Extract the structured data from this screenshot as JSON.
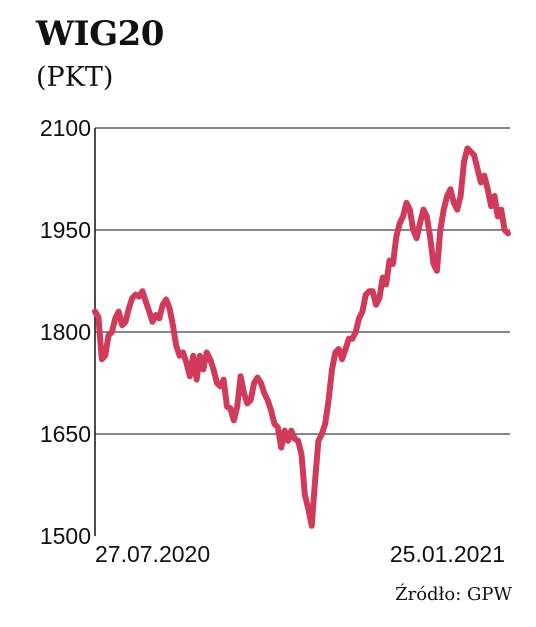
{
  "header": {
    "title": "WIG20",
    "unit": "(PKT)"
  },
  "footer": {
    "source": "Źródło: GPW"
  },
  "chart_data": {
    "type": "line",
    "title": "WIG20",
    "ylabel": "(PKT)",
    "xlabel": "",
    "ylim": [
      1500,
      2100
    ],
    "yticks": [
      "1500",
      "1650",
      "1800",
      "1950",
      "2100"
    ],
    "xticks": [
      "27.07.2020",
      "25.01.2021"
    ],
    "grid": true,
    "colors": {
      "line": "#d13b5b",
      "grid": "#111111"
    },
    "series": [
      {
        "values": [
          1830,
          1822,
          1760,
          1765,
          1795,
          1800,
          1820,
          1830,
          1810,
          1815,
          1835,
          1850,
          1855,
          1852,
          1860,
          1845,
          1830,
          1815,
          1825,
          1820,
          1840,
          1848,
          1835,
          1810,
          1780,
          1765,
          1770,
          1755,
          1735,
          1765,
          1730,
          1765,
          1745,
          1770,
          1760,
          1745,
          1725,
          1720,
          1730,
          1690,
          1688,
          1670,
          1690,
          1735,
          1710,
          1695,
          1700,
          1725,
          1733,
          1725,
          1710,
          1700,
          1685,
          1665,
          1660,
          1630,
          1655,
          1640,
          1655,
          1643,
          1640,
          1620,
          1560,
          1540,
          1515,
          1580,
          1640,
          1650,
          1665,
          1700,
          1745,
          1770,
          1775,
          1760,
          1775,
          1790,
          1790,
          1800,
          1820,
          1830,
          1855,
          1860,
          1860,
          1840,
          1850,
          1880,
          1870,
          1905,
          1900,
          1940,
          1960,
          1970,
          1990,
          1980,
          1950,
          1938,
          1960,
          1980,
          1970,
          1940,
          1900,
          1890,
          1950,
          1980,
          2000,
          2010,
          1990,
          1980,
          2000,
          2050,
          2070,
          2065,
          2060,
          2040,
          2020,
          2030,
          2010,
          1985,
          2000,
          1970,
          1980,
          1950,
          1945
        ]
      }
    ]
  }
}
